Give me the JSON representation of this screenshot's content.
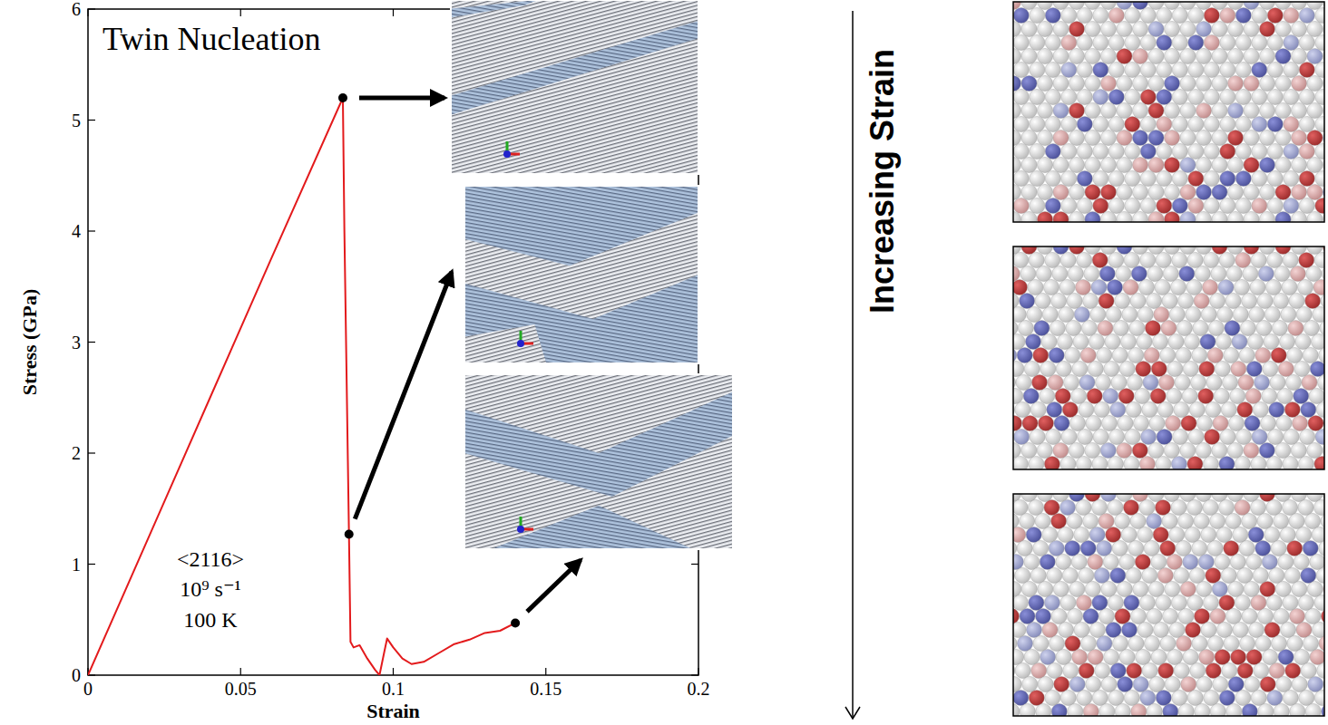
{
  "chart_data": {
    "type": "line",
    "x_label": "Strain",
    "y_label": "Stress (GPa)",
    "xlim": [
      0,
      0.2
    ],
    "ylim": [
      0,
      6
    ],
    "xticks": [
      0,
      0.05,
      0.1,
      0.15,
      0.2
    ],
    "yticks": [
      0,
      1,
      2,
      3,
      4,
      5,
      6
    ],
    "series": [
      {
        "x": [
          0,
          0.02,
          0.04,
          0.06,
          0.0835,
          0.084,
          0.0855,
          0.086,
          0.087,
          0.089,
          0.0915,
          0.094,
          0.0955,
          0.097,
          0.098,
          0.1,
          0.103,
          0.106,
          0.11,
          0.115,
          0.12,
          0.125,
          0.13,
          0.135,
          0.14
        ],
        "values": [
          0,
          1.25,
          2.5,
          3.75,
          5.2,
          4.0,
          1.27,
          0.3,
          0.25,
          0.27,
          0.15,
          0.05,
          0.0,
          0.2,
          0.33,
          0.25,
          0.15,
          0.1,
          0.12,
          0.2,
          0.28,
          0.32,
          0.38,
          0.4,
          0.47
        ],
        "color": "#e31a1c",
        "line_style": "solid"
      },
      {
        "x": [
          0.0835,
          0.0855,
          0.14
        ],
        "values": [
          5.2,
          1.27,
          0.47
        ],
        "color": "#000000",
        "marker": "circle",
        "line_style": "none"
      }
    ],
    "annotations": [
      "Twin Nucleation",
      "<2116>",
      "10⁹ s⁻¹",
      "100 K"
    ],
    "side_label": "Increasing Strain"
  }
}
